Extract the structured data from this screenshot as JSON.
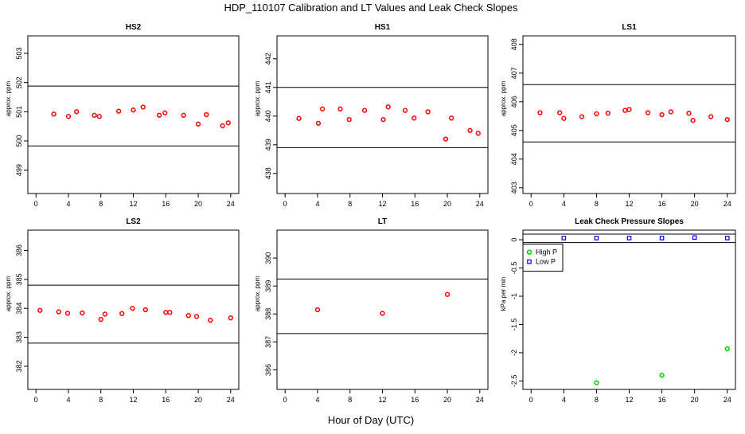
{
  "figure": {
    "title": "HDP_110107  Calibration and LT Values and Leak Check Slopes",
    "xlabel": "Hour of Day (UTC)"
  },
  "chart_data": [
    {
      "type": "scatter",
      "title": "HS2",
      "xlabel": "",
      "ylabel": "approx. ppm",
      "xlim": [
        -1,
        25
      ],
      "ylim": [
        498.2,
        503.6
      ],
      "xticks": [
        0,
        4,
        8,
        12,
        16,
        20,
        24
      ],
      "yticks": [
        499,
        500,
        501,
        502,
        503
      ],
      "hlines": [
        501.88,
        499.83
      ],
      "marker": "circle",
      "color": "#ff0000",
      "series": [
        {
          "x": [
            2.2,
            4.0,
            5.0,
            7.2,
            7.8,
            10.2,
            12.0,
            13.2,
            15.2,
            15.9,
            18.2,
            20.0,
            21.0,
            23.0,
            23.7
          ],
          "y": [
            500.92,
            500.84,
            501.0,
            500.88,
            500.84,
            501.02,
            501.06,
            501.16,
            500.88,
            500.96,
            500.88,
            500.58,
            500.9,
            500.52,
            500.62
          ]
        }
      ]
    },
    {
      "type": "scatter",
      "title": "HS1",
      "xlabel": "",
      "ylabel": "approx. ppm",
      "xlim": [
        -1,
        25
      ],
      "ylim": [
        437.3,
        442.8
      ],
      "xticks": [
        0,
        4,
        8,
        12,
        16,
        20,
        24
      ],
      "yticks": [
        438,
        439,
        440,
        441,
        442
      ],
      "hlines": [
        441.0,
        438.9
      ],
      "marker": "circle",
      "color": "#ff0000",
      "series": [
        {
          "x": [
            1.7,
            4.1,
            4.6,
            6.8,
            7.9,
            9.8,
            12.1,
            12.7,
            14.8,
            15.9,
            17.6,
            19.8,
            20.5,
            22.8,
            23.8
          ],
          "y": [
            439.92,
            439.75,
            440.25,
            440.25,
            439.88,
            440.2,
            439.88,
            440.32,
            440.2,
            439.93,
            440.15,
            439.2,
            439.93,
            439.5,
            439.4
          ]
        }
      ]
    },
    {
      "type": "scatter",
      "title": "LS1",
      "xlabel": "",
      "ylabel": "approx. ppm",
      "xlim": [
        -1,
        25
      ],
      "ylim": [
        402.8,
        408.3
      ],
      "xticks": [
        0,
        4,
        8,
        12,
        16,
        20,
        24
      ],
      "yticks": [
        403,
        404,
        405,
        406,
        407,
        408
      ],
      "hlines": [
        406.6,
        404.6
      ],
      "marker": "circle",
      "color": "#ff0000",
      "series": [
        {
          "x": [
            1.1,
            3.5,
            4.0,
            6.2,
            8.0,
            9.4,
            11.5,
            12.0,
            14.3,
            16.0,
            17.1,
            19.3,
            19.8,
            22.0,
            24.0
          ],
          "y": [
            405.62,
            405.62,
            405.42,
            405.48,
            405.58,
            405.6,
            405.7,
            405.73,
            405.62,
            405.55,
            405.65,
            405.6,
            405.35,
            405.48,
            405.38
          ]
        }
      ]
    },
    {
      "type": "scatter",
      "title": "LS2",
      "xlabel": "",
      "ylabel": "approx. ppm",
      "xlim": [
        -1,
        25
      ],
      "ylim": [
        381.2,
        386.7
      ],
      "xticks": [
        0,
        4,
        8,
        12,
        16,
        20,
        24
      ],
      "yticks": [
        382,
        383,
        384,
        385,
        386
      ],
      "hlines": [
        384.8,
        382.8
      ],
      "marker": "circle",
      "color": "#ff0000",
      "series": [
        {
          "x": [
            0.5,
            2.8,
            3.9,
            5.7,
            8.0,
            8.5,
            10.6,
            11.9,
            13.5,
            16.0,
            16.5,
            18.8,
            19.8,
            21.5,
            24.0
          ],
          "y": [
            383.93,
            383.88,
            383.83,
            383.84,
            383.62,
            383.8,
            383.82,
            384.0,
            383.95,
            383.86,
            383.86,
            383.75,
            383.72,
            383.59,
            383.67
          ]
        }
      ]
    },
    {
      "type": "scatter",
      "title": "LT",
      "xlabel": "",
      "ylabel": "approx. ppm",
      "xlim": [
        -1,
        25
      ],
      "ylim": [
        385.3,
        391.0
      ],
      "xticks": [
        0,
        4,
        8,
        12,
        16,
        20,
        24
      ],
      "yticks": [
        386,
        387,
        388,
        389,
        390
      ],
      "hlines": [
        389.25,
        387.3
      ],
      "marker": "circle",
      "color": "#ff0000",
      "series": [
        {
          "x": [
            4.0,
            12.0,
            20.0
          ],
          "y": [
            388.15,
            388.02,
            388.7
          ]
        }
      ]
    },
    {
      "type": "scatter",
      "title": "Leak Check Pressure Slopes",
      "xlabel": "",
      "ylabel": "kPa per min",
      "xlim": [
        -1,
        25
      ],
      "ylim": [
        -2.65,
        0.17
      ],
      "xticks": [
        0,
        4,
        8,
        12,
        16,
        20,
        24
      ],
      "yticks": [
        -2.5,
        -2.0,
        -1.5,
        -1.0,
        -0.5,
        0.0
      ],
      "hlines": [
        0.1,
        -0.05
      ],
      "legend": "top-left",
      "series": [
        {
          "name": "High P",
          "marker": "circle",
          "color": "#00cc00",
          "x": [
            8.0,
            16.0,
            24.0
          ],
          "y": [
            -2.53,
            -2.4,
            -1.93
          ]
        },
        {
          "name": "Low P",
          "marker": "square",
          "color": "#0000ff",
          "x": [
            4.0,
            8.0,
            12.0,
            16.0,
            20.0,
            24.0
          ],
          "y": [
            0.03,
            0.03,
            0.03,
            0.03,
            0.04,
            0.03
          ]
        }
      ]
    }
  ]
}
